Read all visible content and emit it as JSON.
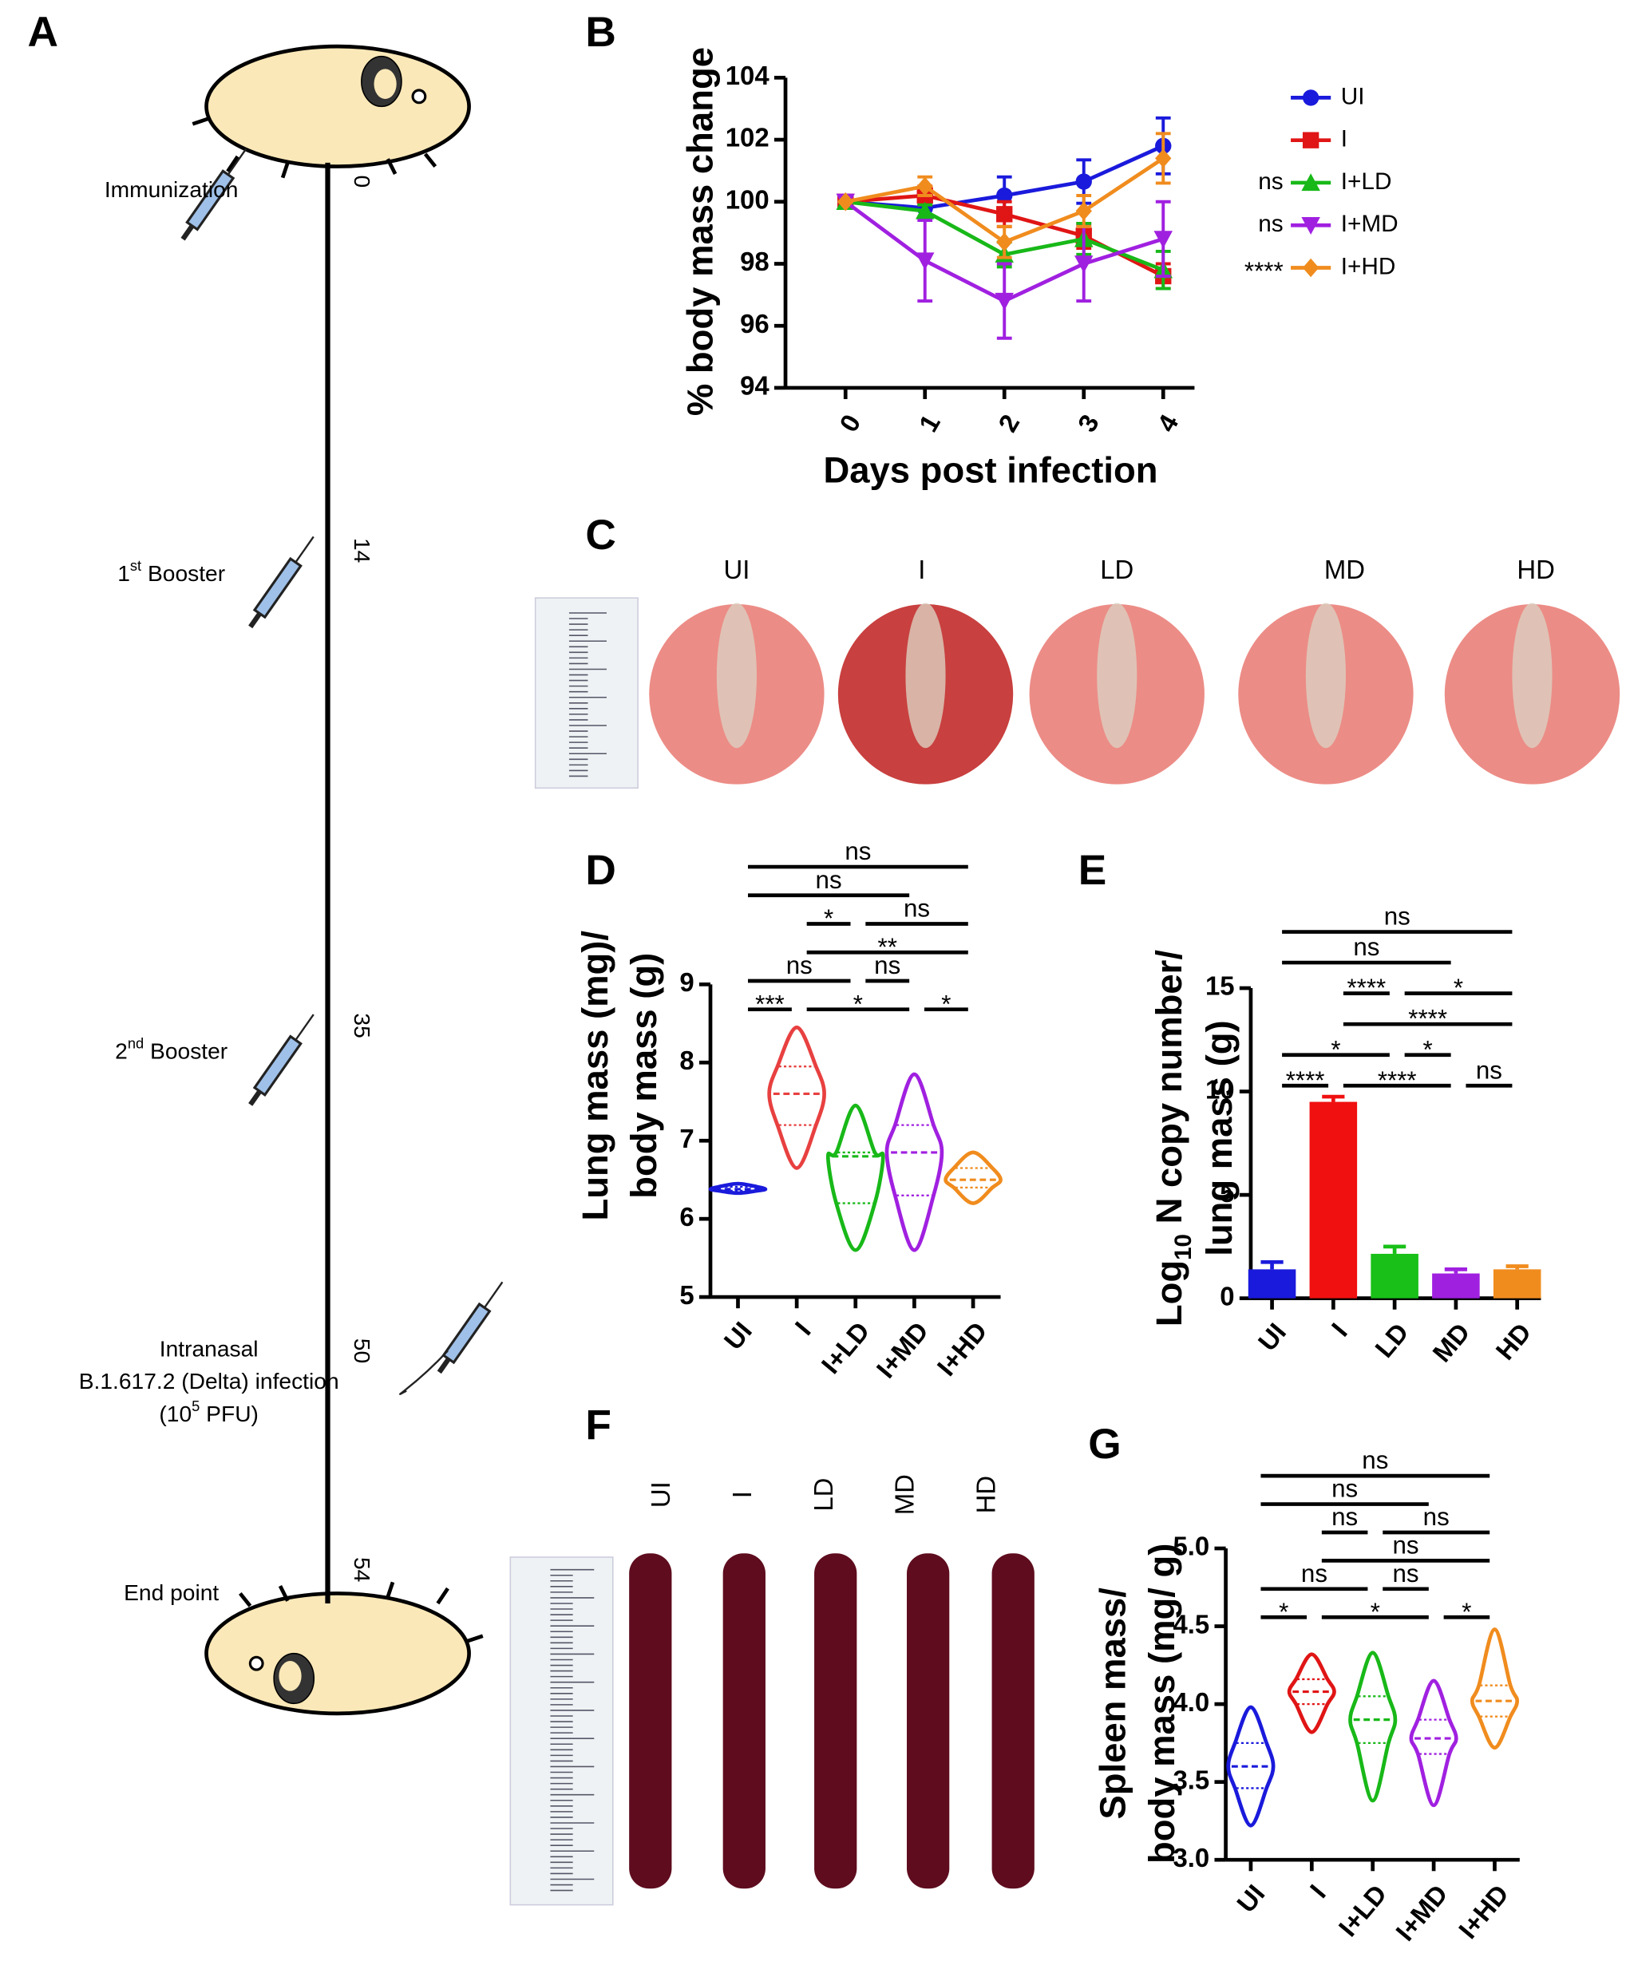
{
  "timeline": {
    "panel": "A",
    "events": [
      {
        "day": 0,
        "lines": [
          [
            {
              "t": "Immunization"
            }
          ]
        ]
      },
      {
        "day": 14,
        "lines": [
          [
            {
              "t": "1"
            },
            {
              "sup": "st"
            },
            {
              "t": " Booster"
            }
          ]
        ]
      },
      {
        "day": 35,
        "lines": [
          [
            {
              "t": "2"
            },
            {
              "sup": "nd"
            },
            {
              "t": " Booster"
            }
          ]
        ]
      },
      {
        "day": 50,
        "lines": [
          [
            {
              "t": "Intranasal"
            }
          ],
          [
            {
              "t": "B.1.617.2 (Delta) infection"
            }
          ],
          [
            {
              "t": "(10"
            },
            {
              "sup": "5"
            },
            {
              "t": " PFU)"
            }
          ]
        ]
      },
      {
        "day": 54,
        "lines": [
          [
            {
              "t": "End point"
            }
          ]
        ]
      }
    ]
  },
  "lung_photo": {
    "panel": "C",
    "labels": [
      "UI",
      "I",
      "LD",
      "MD",
      "HD"
    ]
  },
  "spleen_photo": {
    "panel": "F",
    "labels": [
      "UI",
      "I",
      "LD",
      "MD",
      "HD"
    ]
  },
  "chart_data": [
    {
      "panel": "B",
      "type": "line",
      "categories": [
        "0",
        "1",
        "2",
        "3",
        "4"
      ],
      "xlabel": "Days post infection",
      "ylabel": [
        [
          {
            "t": "% body mass change"
          }
        ]
      ],
      "ylim": [
        94,
        104
      ],
      "yticks": [
        94,
        96,
        98,
        100,
        102,
        104
      ],
      "series": [
        {
          "name": "UI",
          "color": "#1a1adc",
          "marker": "circle",
          "values": [
            100,
            99.8,
            100.2,
            100.65,
            101.8
          ],
          "errors": [
            0,
            0.3,
            0.6,
            0.7,
            0.9
          ]
        },
        {
          "name": "I",
          "color": "#e01515",
          "marker": "square",
          "values": [
            100,
            100.2,
            99.6,
            98.9,
            97.6
          ],
          "errors": [
            0,
            0.3,
            0.4,
            0.4,
            0.4
          ]
        },
        {
          "name": "I+LD",
          "color": "#18b818",
          "marker": "triangle-up",
          "values": [
            100,
            99.7,
            98.3,
            98.8,
            97.8
          ],
          "errors": [
            0,
            0.2,
            0.4,
            0.5,
            0.6
          ],
          "annotation": "ns"
        },
        {
          "name": "I+MD",
          "color": "#a020e0",
          "marker": "triangle-down",
          "values": [
            100,
            98.1,
            96.8,
            98.0,
            98.8
          ],
          "errors": [
            0,
            1.3,
            1.2,
            1.2,
            1.2
          ],
          "annotation": "ns"
        },
        {
          "name": "I+HD",
          "color": "#f08c1e",
          "marker": "diamond",
          "values": [
            100,
            100.5,
            98.7,
            99.7,
            101.4
          ],
          "errors": [
            0,
            0.3,
            0.5,
            0.5,
            0.8
          ],
          "annotation": "****"
        }
      ]
    },
    {
      "panel": "D",
      "type": "violin",
      "categories": [
        "UI",
        "I",
        "I+LD",
        "I+MD",
        "I+HD"
      ],
      "colors": [
        "#1a1adc",
        "#e84040",
        "#18b818",
        "#a020e0",
        "#f08c1e"
      ],
      "ylabel": [
        [
          {
            "t": "Lung mass (mg)/"
          }
        ],
        [
          {
            "t": "body mass (g)"
          }
        ]
      ],
      "ylim": [
        5,
        9
      ],
      "yticks": [
        5,
        6,
        7,
        8,
        9
      ],
      "stats": [
        {
          "min": 6.33,
          "q1": 6.36,
          "median": 6.38,
          "q3": 6.41,
          "max": 6.45
        },
        {
          "min": 6.65,
          "q1": 7.2,
          "median": 7.6,
          "q3": 7.95,
          "max": 8.45
        },
        {
          "min": 5.6,
          "q1": 6.2,
          "median": 6.8,
          "q3": 6.85,
          "max": 7.45
        },
        {
          "min": 5.6,
          "q1": 6.3,
          "median": 6.85,
          "q3": 7.2,
          "max": 7.85
        },
        {
          "min": 6.2,
          "q1": 6.4,
          "median": 6.5,
          "q3": 6.65,
          "max": 6.85
        }
      ],
      "comparisons": [
        [
          {
            "groups": [
              "UI",
              "I+HD"
            ],
            "label": "ns"
          }
        ],
        [
          {
            "groups": [
              "UI",
              "I+MD"
            ],
            "label": "ns"
          }
        ],
        [
          {
            "groups": [
              "I",
              "I+LD"
            ],
            "label": "*"
          },
          {
            "groups": [
              "I+LD",
              "I+HD"
            ],
            "label": "ns"
          }
        ],
        [
          {
            "groups": [
              "I",
              "I+HD"
            ],
            "label": "**"
          }
        ],
        [
          {
            "groups": [
              "UI",
              "I+LD"
            ],
            "label": "ns"
          },
          {
            "groups": [
              "I+LD",
              "I+MD"
            ],
            "label": "ns"
          }
        ],
        [
          {
            "groups": [
              "UI",
              "I"
            ],
            "label": "***"
          },
          {
            "groups": [
              "I",
              "I+MD"
            ],
            "label": "*"
          },
          {
            "groups": [
              "I+MD",
              "I+HD"
            ],
            "label": "*"
          }
        ]
      ]
    },
    {
      "panel": "E",
      "type": "bar",
      "categories": [
        "UI",
        "I",
        "LD",
        "MD",
        "HD"
      ],
      "colors": [
        "#1a1adc",
        "#f01010",
        "#18c018",
        "#a020e0",
        "#f08c1e"
      ],
      "ylabel": [
        [
          {
            "t": "Log"
          },
          {
            "sub": "10"
          },
          {
            "t": " N copy number/"
          }
        ],
        [
          {
            "t": "lung mass (g)"
          }
        ]
      ],
      "ylim": [
        0,
        15
      ],
      "yticks": [
        0,
        5,
        10,
        15
      ],
      "values": [
        1.4,
        9.5,
        2.15,
        1.2,
        1.4
      ],
      "errors": [
        0.35,
        0.25,
        0.35,
        0.2,
        0.15
      ],
      "comparisons": [
        [
          {
            "groups": [
              "UI",
              "HD"
            ],
            "label": "ns"
          }
        ],
        [
          {
            "groups": [
              "UI",
              "MD"
            ],
            "label": "ns"
          }
        ],
        [
          {
            "groups": [
              "I",
              "LD"
            ],
            "label": "****"
          },
          {
            "groups": [
              "LD",
              "HD"
            ],
            "label": "*"
          }
        ],
        [
          {
            "groups": [
              "I",
              "HD"
            ],
            "label": "****"
          }
        ],
        [
          {
            "groups": [
              "UI",
              "LD"
            ],
            "label": "*"
          },
          {
            "groups": [
              "LD",
              "MD"
            ],
            "label": "*"
          }
        ],
        [
          {
            "groups": [
              "UI",
              "I"
            ],
            "label": "****"
          },
          {
            "groups": [
              "I",
              "MD"
            ],
            "label": "****"
          },
          {
            "groups": [
              "MD",
              "HD"
            ],
            "label": "ns"
          }
        ]
      ]
    },
    {
      "panel": "G",
      "type": "violin",
      "categories": [
        "UI",
        "I",
        "I+LD",
        "I+MD",
        "I+HD"
      ],
      "colors": [
        "#1a1adc",
        "#e01515",
        "#18b818",
        "#a020e0",
        "#f08c1e"
      ],
      "ylabel": [
        [
          {
            "t": "Spleen mass/"
          }
        ],
        [
          {
            "t": "body mass (mg/ g)"
          }
        ]
      ],
      "ylim": [
        3,
        5
      ],
      "yticks": [
        {
          "value": 3,
          "label": "3.0"
        },
        3.5,
        {
          "value": 4,
          "label": "4.0"
        },
        4.5,
        {
          "value": 5,
          "label": "5.0"
        }
      ],
      "stats": [
        {
          "min": 3.22,
          "q1": 3.46,
          "median": 3.6,
          "q3": 3.75,
          "max": 3.98
        },
        {
          "min": 3.82,
          "q1": 4.0,
          "median": 4.08,
          "q3": 4.16,
          "max": 4.32
        },
        {
          "min": 3.38,
          "q1": 3.75,
          "median": 3.9,
          "q3": 4.05,
          "max": 4.33
        },
        {
          "min": 3.35,
          "q1": 3.68,
          "median": 3.78,
          "q3": 3.9,
          "max": 4.15
        },
        {
          "min": 3.72,
          "q1": 3.92,
          "median": 4.02,
          "q3": 4.12,
          "max": 4.48
        }
      ],
      "comparisons": [
        [
          {
            "groups": [
              "UI",
              "I+HD"
            ],
            "label": "ns"
          }
        ],
        [
          {
            "groups": [
              "UI",
              "I+MD"
            ],
            "label": "ns"
          }
        ],
        [
          {
            "groups": [
              "I",
              "I+LD"
            ],
            "label": "ns"
          },
          {
            "groups": [
              "I+LD",
              "I+HD"
            ],
            "label": "ns"
          }
        ],
        [
          {
            "groups": [
              "I",
              "I+HD"
            ],
            "label": "ns"
          }
        ],
        [
          {
            "groups": [
              "UI",
              "I+LD"
            ],
            "label": "ns"
          },
          {
            "groups": [
              "I+LD",
              "I+MD"
            ],
            "label": "ns"
          }
        ],
        [
          {
            "groups": [
              "UI",
              "I"
            ],
            "label": "*"
          },
          {
            "groups": [
              "I",
              "I+MD"
            ],
            "label": "*"
          },
          {
            "groups": [
              "I+MD",
              "I+HD"
            ],
            "label": "*"
          }
        ]
      ]
    }
  ]
}
